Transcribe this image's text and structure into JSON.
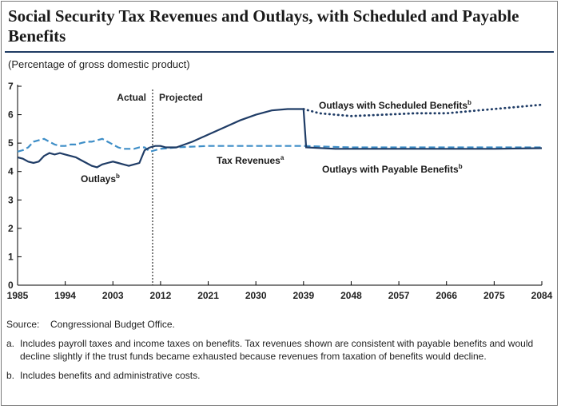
{
  "title": "Social Security Tax Revenues and Outlays, with Scheduled and Payable Benefits",
  "subtitle": "(Percentage of gross domestic product)",
  "chart_data": {
    "type": "line",
    "title": "Social Security Tax Revenues and Outlays, with Scheduled and Payable Benefits",
    "ylabel": "(Percentage of gross domestic product)",
    "xlabel": "",
    "xlim": [
      1985,
      2084
    ],
    "ylim": [
      0,
      7
    ],
    "x_ticks": [
      "1985",
      "1994",
      "2003",
      "2012",
      "2021",
      "2030",
      "2039",
      "2048",
      "2057",
      "2066",
      "2075",
      "2084"
    ],
    "y_ticks": [
      "0",
      "1",
      "2",
      "3",
      "4",
      "5",
      "6",
      "7"
    ],
    "grid": false,
    "divider": {
      "x": 2010.5,
      "left_label": "Actual",
      "right_label": "Projected"
    },
    "series": [
      {
        "name": "Outlays",
        "footnote": "b",
        "style": "solid",
        "color": "#1f3c66",
        "points": [
          [
            1985,
            4.5
          ],
          [
            1986,
            4.45
          ],
          [
            1987,
            4.35
          ],
          [
            1988,
            4.3
          ],
          [
            1989,
            4.35
          ],
          [
            1990,
            4.55
          ],
          [
            1991,
            4.65
          ],
          [
            1992,
            4.6
          ],
          [
            1993,
            4.65
          ],
          [
            1994,
            4.6
          ],
          [
            1995,
            4.55
          ],
          [
            1996,
            4.5
          ],
          [
            1997,
            4.4
          ],
          [
            1998,
            4.3
          ],
          [
            1999,
            4.2
          ],
          [
            2000,
            4.15
          ],
          [
            2001,
            4.25
          ],
          [
            2002,
            4.3
          ],
          [
            2003,
            4.35
          ],
          [
            2004,
            4.3
          ],
          [
            2005,
            4.25
          ],
          [
            2006,
            4.2
          ],
          [
            2007,
            4.25
          ],
          [
            2008,
            4.3
          ],
          [
            2009,
            4.75
          ],
          [
            2010,
            4.85
          ]
        ]
      },
      {
        "name": "Outlays with Scheduled Benefits",
        "footnote": "b",
        "style": "solid-then-dotted",
        "dotted_from_x": 2039,
        "color": "#1f3c66",
        "points": [
          [
            2010,
            4.85
          ],
          [
            2011,
            4.9
          ],
          [
            2012,
            4.9
          ],
          [
            2013,
            4.85
          ],
          [
            2015,
            4.85
          ],
          [
            2018,
            5.05
          ],
          [
            2021,
            5.3
          ],
          [
            2024,
            5.55
          ],
          [
            2027,
            5.8
          ],
          [
            2030,
            6.0
          ],
          [
            2033,
            6.15
          ],
          [
            2036,
            6.2
          ],
          [
            2039,
            6.2
          ],
          [
            2042,
            6.05
          ],
          [
            2048,
            5.95
          ],
          [
            2054,
            6.0
          ],
          [
            2060,
            6.05
          ],
          [
            2066,
            6.05
          ],
          [
            2072,
            6.15
          ],
          [
            2078,
            6.25
          ],
          [
            2084,
            6.35
          ]
        ]
      },
      {
        "name": "Outlays with Payable Benefits",
        "footnote": "b",
        "style": "solid",
        "color": "#1f3c66",
        "points": [
          [
            2039,
            6.2
          ],
          [
            2039.5,
            4.85
          ],
          [
            2045,
            4.8
          ],
          [
            2050,
            4.8
          ],
          [
            2057,
            4.8
          ],
          [
            2066,
            4.8
          ],
          [
            2075,
            4.8
          ],
          [
            2084,
            4.82
          ]
        ]
      },
      {
        "name": "Tax Revenues",
        "footnote": "a",
        "style": "dashed",
        "color": "#3e8ec7",
        "points": [
          [
            1985,
            4.7
          ],
          [
            1986,
            4.75
          ],
          [
            1987,
            4.85
          ],
          [
            1988,
            5.05
          ],
          [
            1989,
            5.1
          ],
          [
            1990,
            5.15
          ],
          [
            1991,
            5.05
          ],
          [
            1992,
            4.95
          ],
          [
            1993,
            4.9
          ],
          [
            1994,
            4.9
          ],
          [
            1995,
            4.95
          ],
          [
            1996,
            4.95
          ],
          [
            1997,
            5.0
          ],
          [
            1998,
            5.05
          ],
          [
            1999,
            5.05
          ],
          [
            2000,
            5.1
          ],
          [
            2001,
            5.15
          ],
          [
            2002,
            5.05
          ],
          [
            2003,
            4.95
          ],
          [
            2004,
            4.85
          ],
          [
            2005,
            4.8
          ],
          [
            2006,
            4.8
          ],
          [
            2007,
            4.8
          ],
          [
            2008,
            4.85
          ],
          [
            2009,
            4.85
          ],
          [
            2010,
            4.7
          ],
          [
            2011,
            4.75
          ],
          [
            2012,
            4.8
          ],
          [
            2015,
            4.85
          ],
          [
            2021,
            4.9
          ],
          [
            2030,
            4.9
          ],
          [
            2039,
            4.9
          ],
          [
            2048,
            4.85
          ],
          [
            2057,
            4.85
          ],
          [
            2066,
            4.85
          ],
          [
            2075,
            4.85
          ],
          [
            2084,
            4.85
          ]
        ]
      }
    ],
    "annotations": [
      {
        "text": "Outlays with Scheduled Benefits",
        "sup": "b"
      },
      {
        "text": "Tax Revenues",
        "sup": "a"
      },
      {
        "text": "Outlays with Payable Benefits",
        "sup": "b"
      },
      {
        "text": "Outlays",
        "sup": "b"
      }
    ]
  },
  "source": {
    "label": "Source:",
    "text": "Congressional Budget Office."
  },
  "notes": [
    {
      "mark": "a.",
      "text": "Includes payroll taxes and income taxes on benefits. Tax revenues shown are consistent with payable benefits and would decline slightly if the trust funds became exhausted because revenues from taxation of benefits would decline."
    },
    {
      "mark": "b.",
      "text": "Includes benefits and administrative costs."
    }
  ]
}
